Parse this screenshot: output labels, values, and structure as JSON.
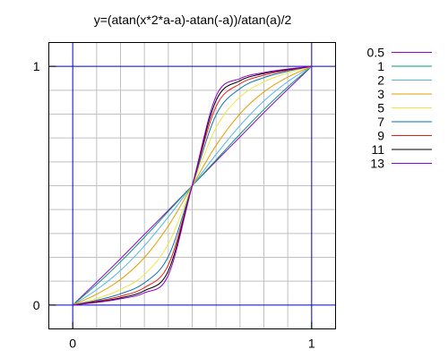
{
  "chart_data": {
    "type": "line",
    "title": "y=(atan(x*2*a-a)-atan(-a))/atan(a)/2",
    "xlabel": "",
    "ylabel": "",
    "xlim": [
      -0.1,
      1.1
    ],
    "ylim": [
      -0.1,
      1.1
    ],
    "grid": true,
    "x_ticks": [
      0,
      1
    ],
    "x_tick_labels": [
      "0",
      "1"
    ],
    "y_ticks": [
      0,
      1
    ],
    "y_tick_labels": [
      "0",
      "1"
    ],
    "frame_color": "#000000",
    "grid_color": "#c0c0c0",
    "reference_color": "#0000cc",
    "legend_position": "outside-right",
    "x": [
      0,
      0.1,
      0.2,
      0.3,
      0.4,
      0.5,
      0.6,
      0.7,
      0.8,
      0.9,
      1
    ],
    "series": [
      {
        "name": "0.5",
        "color": "#9400d3",
        "values": [
          0,
          0.096,
          0.194,
          0.296,
          0.397,
          0.5,
          0.603,
          0.704,
          0.806,
          0.904,
          1
        ]
      },
      {
        "name": "1",
        "color": "#009e73",
        "values": [
          0,
          0.086,
          0.181,
          0.284,
          0.392,
          0.5,
          0.608,
          0.716,
          0.819,
          0.914,
          1
        ]
      },
      {
        "name": "2",
        "color": "#56b4e9",
        "values": [
          0,
          0.064,
          0.145,
          0.248,
          0.369,
          0.5,
          0.631,
          0.752,
          0.855,
          0.936,
          1
        ]
      },
      {
        "name": "3",
        "color": "#e69f00",
        "values": [
          0,
          0.045,
          0.107,
          0.199,
          0.331,
          0.5,
          0.669,
          0.801,
          0.893,
          0.955,
          1
        ]
      },
      {
        "name": "5",
        "color": "#f0e442",
        "values": [
          0,
          0.027,
          0.065,
          0.128,
          0.256,
          0.5,
          0.744,
          0.872,
          0.935,
          0.973,
          1
        ]
      },
      {
        "name": "7",
        "color": "#0072b2",
        "values": [
          0,
          0.02,
          0.047,
          0.093,
          0.203,
          0.5,
          0.797,
          0.907,
          0.953,
          0.98,
          1
        ]
      },
      {
        "name": "9",
        "color": "#e51e10",
        "values": [
          0,
          0.016,
          0.037,
          0.073,
          0.168,
          0.5,
          0.832,
          0.927,
          0.963,
          0.984,
          1
        ]
      },
      {
        "name": "11",
        "color": "#000000",
        "values": [
          0,
          0.013,
          0.03,
          0.06,
          0.143,
          0.5,
          0.857,
          0.94,
          0.97,
          0.987,
          1
        ]
      },
      {
        "name": "13",
        "color": "#9400d3",
        "values": [
          0,
          0.011,
          0.026,
          0.051,
          0.125,
          0.5,
          0.875,
          0.949,
          0.974,
          0.989,
          1
        ]
      }
    ]
  }
}
